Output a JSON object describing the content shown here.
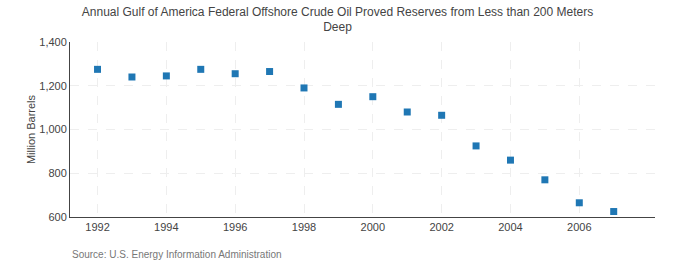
{
  "chart_data": {
    "type": "scatter",
    "title": "Annual Gulf of America Federal Offshore Crude Oil Proved Reserves from Less than 200 Meters\nDeep",
    "ylabel": "Million Barrels",
    "annotations": [
      "Source: U.S. Energy Information Administration"
    ],
    "x": [
      1992,
      1993,
      1994,
      1995,
      1996,
      1997,
      1998,
      1999,
      2000,
      2001,
      2002,
      2003,
      2004,
      2005,
      2006,
      2007
    ],
    "values": [
      1275,
      1240,
      1245,
      1275,
      1255,
      1265,
      1190,
      1115,
      1150,
      1080,
      1065,
      925,
      860,
      770,
      665,
      625
    ],
    "marker": "square",
    "xlim": [
      1991.2,
      2008.2
    ],
    "xticks": [
      1992,
      1994,
      1996,
      1998,
      2000,
      2002,
      2004,
      2006
    ],
    "ylim": [
      600,
      1400
    ],
    "yticks": [
      600,
      800,
      {
        "value": 1000,
        "label": "1,000"
      },
      {
        "value": 1200,
        "label": "1,200"
      },
      {
        "value": 1400,
        "label": "1,400"
      }
    ],
    "grid": true
  }
}
